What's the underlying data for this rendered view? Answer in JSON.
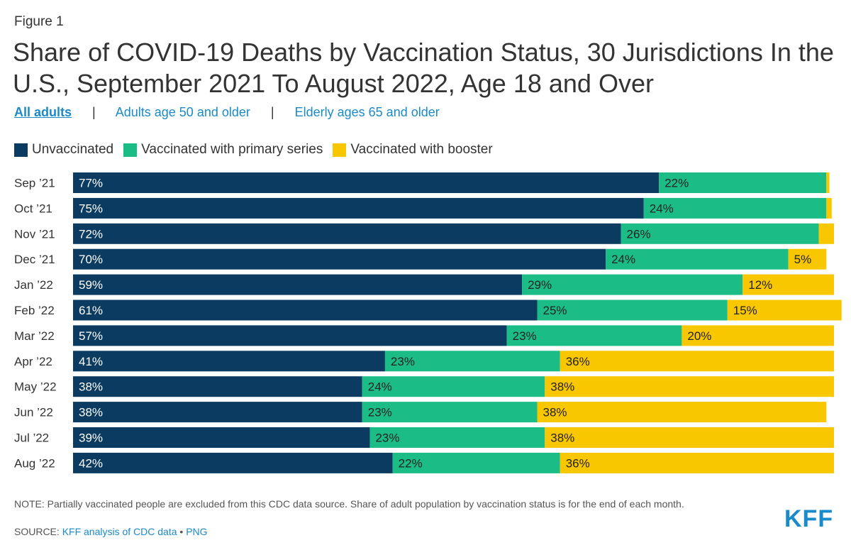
{
  "figure_label": "Figure 1",
  "tabs": {
    "items": [
      {
        "label": "All adults",
        "active": true
      },
      {
        "label": "Adults age 50 and older",
        "active": false
      },
      {
        "label": "Elderly ages 65 and older",
        "active": false
      }
    ],
    "separator": "|"
  },
  "colors": {
    "unvaccinated": "#0b3b60",
    "primary": "#1bbc86",
    "booster": "#f9c700",
    "link": "#1a8ac9"
  },
  "chart_data": {
    "type": "bar",
    "orientation": "horizontal",
    "stacked": true,
    "title": "Share of COVID-19 Deaths by Vaccination Status, 30 Jurisdictions In the U.S., September 2021 To August 2022, Age 18 and Over",
    "categories": [
      "Sep ’21",
      "Oct ’21",
      "Nov ’21",
      "Dec ’21",
      "Jan ’22",
      "Feb ’22",
      "Mar ’22",
      "Apr ’22",
      "May ’22",
      "Jun ’22",
      "Jul ’22",
      "Aug ’22"
    ],
    "series": [
      {
        "name": "Unvaccinated",
        "values": [
          77,
          75,
          72,
          70,
          59,
          61,
          57,
          41,
          38,
          38,
          39,
          42
        ]
      },
      {
        "name": "Vaccinated with primary series",
        "values": [
          22,
          24,
          26,
          24,
          29,
          25,
          23,
          23,
          24,
          23,
          23,
          22
        ]
      },
      {
        "name": "Vaccinated with booster",
        "values": [
          0.4,
          0.7,
          2,
          5,
          12,
          15,
          20,
          36,
          38,
          38,
          38,
          36
        ]
      }
    ],
    "data_labels": [
      [
        "77%",
        "22%",
        ""
      ],
      [
        "75%",
        "24%",
        ""
      ],
      [
        "72%",
        "26%",
        ""
      ],
      [
        "70%",
        "24%",
        "5%"
      ],
      [
        "59%",
        "29%",
        "12%"
      ],
      [
        "61%",
        "25%",
        "15%"
      ],
      [
        "57%",
        "23%",
        "20%"
      ],
      [
        "41%",
        "23%",
        "36%"
      ],
      [
        "38%",
        "24%",
        "38%"
      ],
      [
        "38%",
        "23%",
        "38%"
      ],
      [
        "39%",
        "23%",
        "38%"
      ],
      [
        "42%",
        "22%",
        "36%"
      ]
    ],
    "xlim": [
      0,
      100
    ],
    "xlabel": "",
    "ylabel": "",
    "grid": false,
    "legend_position": "top-left"
  },
  "note": "NOTE: Partially vaccinated people are excluded from this CDC data source. Share of adult population by vaccination status is for the end of each month.",
  "source": {
    "prefix": "SOURCE: ",
    "link_label": "KFF analysis of CDC data",
    "bullet": " • ",
    "png_label": "PNG"
  },
  "logo": "KFF"
}
